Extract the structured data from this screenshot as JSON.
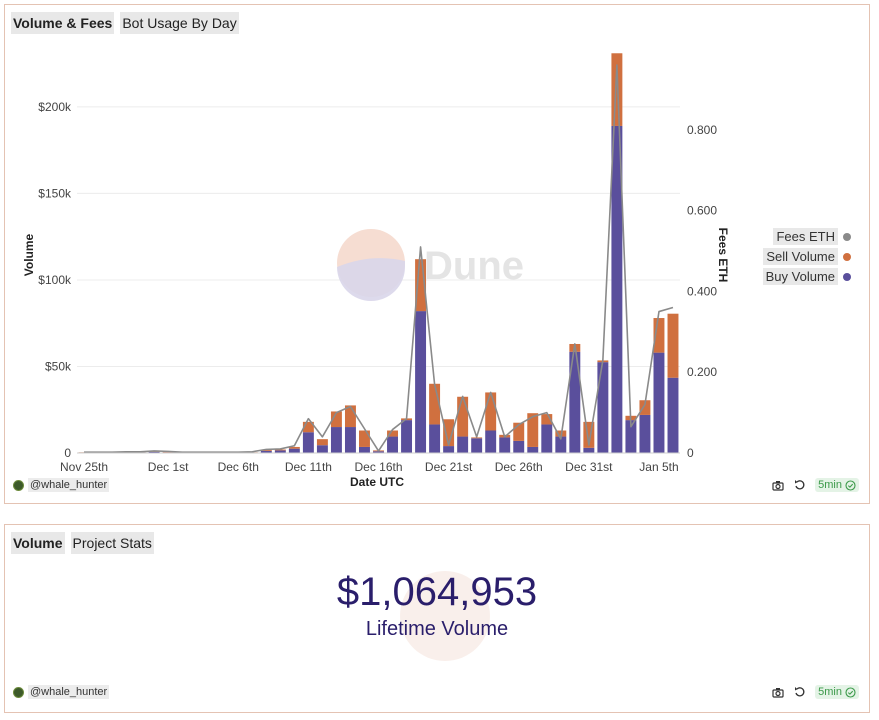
{
  "chart_panel": {
    "tabs": [
      {
        "label": "Volume & Fees",
        "active": true
      },
      {
        "label": "Bot Usage By Day",
        "active": false
      }
    ],
    "author": "@whale_hunter",
    "refresh": "5min",
    "watermark": "Dune"
  },
  "stat_panel": {
    "tabs": [
      {
        "label": "Volume",
        "active": true
      },
      {
        "label": "Project Stats",
        "active": false
      }
    ],
    "value": "$1,064,953",
    "label": "Lifetime Volume",
    "author": "@whale_hunter",
    "refresh": "5min"
  },
  "chart_data": {
    "type": "bar",
    "stacked": true,
    "xlabel": "Date UTC",
    "ylabel": "Volume",
    "y2label": "Fees ETH",
    "ylim": [
      0,
      230000
    ],
    "y2lim": [
      0,
      0.985
    ],
    "y_ticks": [
      0,
      50000,
      100000,
      150000,
      200000
    ],
    "y_tick_labels": [
      "0",
      "$50k",
      "$100k",
      "$150k",
      "$200k"
    ],
    "y2_ticks": [
      0,
      0.2,
      0.4,
      0.6,
      0.8
    ],
    "y2_tick_labels": [
      "0",
      "0.200",
      "0.400",
      "0.600",
      "0.800"
    ],
    "x_tick_labels": [
      {
        "index": 0,
        "label": "Nov 25th"
      },
      {
        "index": 6,
        "label": "Dec 1st"
      },
      {
        "index": 11,
        "label": "Dec 6th"
      },
      {
        "index": 16,
        "label": "Dec 11th"
      },
      {
        "index": 21,
        "label": "Dec 16th"
      },
      {
        "index": 26,
        "label": "Dec 21st"
      },
      {
        "index": 31,
        "label": "Dec 26th"
      },
      {
        "index": 36,
        "label": "Dec 31st"
      },
      {
        "index": 41,
        "label": "Jan 5th"
      }
    ],
    "categories": [
      "Nov 25",
      "Nov 26",
      "Nov 27",
      "Nov 28",
      "Nov 29",
      "Nov 30",
      "Dec 1",
      "Dec 2",
      "Dec 3",
      "Dec 4",
      "Dec 5",
      "Dec 6",
      "Dec 7",
      "Dec 8",
      "Dec 9",
      "Dec 10",
      "Dec 11",
      "Dec 12",
      "Dec 13",
      "Dec 14",
      "Dec 15",
      "Dec 16",
      "Dec 17",
      "Dec 18",
      "Dec 19",
      "Dec 20",
      "Dec 21",
      "Dec 22",
      "Dec 23",
      "Dec 24",
      "Dec 25",
      "Dec 26",
      "Dec 27",
      "Dec 28",
      "Dec 29",
      "Dec 30",
      "Dec 31",
      "Jan 1",
      "Jan 2",
      "Jan 3",
      "Jan 4",
      "Jan 5",
      "Jan 6"
    ],
    "series": [
      {
        "name": "Buy Volume",
        "color": "#5a4f9c",
        "values": [
          300,
          200,
          200,
          300,
          400,
          600,
          400,
          200,
          200,
          200,
          200,
          200,
          300,
          1200,
          1500,
          2500,
          12000,
          4500,
          15000,
          15000,
          3500,
          1000,
          9500,
          19000,
          82000,
          16500,
          4000,
          9500,
          8500,
          13000,
          9000,
          7000,
          3500,
          16500,
          9500,
          58500,
          3000,
          52500,
          189000,
          19000,
          22000,
          58000,
          43500
        ]
      },
      {
        "name": "Sell Volume",
        "color": "#d0703f",
        "values": [
          100,
          100,
          100,
          100,
          100,
          200,
          200,
          100,
          100,
          100,
          100,
          100,
          100,
          500,
          500,
          1000,
          6000,
          3500,
          9000,
          12500,
          9500,
          500,
          3500,
          1000,
          30000,
          23500,
          15500,
          23000,
          500,
          22000,
          1500,
          10500,
          19500,
          6000,
          3500,
          4500,
          15000,
          1000,
          42000,
          2500,
          8500,
          20000,
          37000
        ]
      },
      {
        "name": "Fees ETH",
        "color": "#8a8a8a",
        "values": [
          0.002,
          0.002,
          0.002,
          0.003,
          0.003,
          0.005,
          0.004,
          0.002,
          0.002,
          0.002,
          0.002,
          0.002,
          0.003,
          0.009,
          0.01,
          0.018,
          0.085,
          0.04,
          0.1,
          0.115,
          0.06,
          0.005,
          0.058,
          0.085,
          0.51,
          0.17,
          0.02,
          0.14,
          0.04,
          0.15,
          0.04,
          0.07,
          0.09,
          0.1,
          0.035,
          0.27,
          0.02,
          0.23,
          0.96,
          0.065,
          0.12,
          0.35,
          0.36
        ]
      }
    ]
  }
}
